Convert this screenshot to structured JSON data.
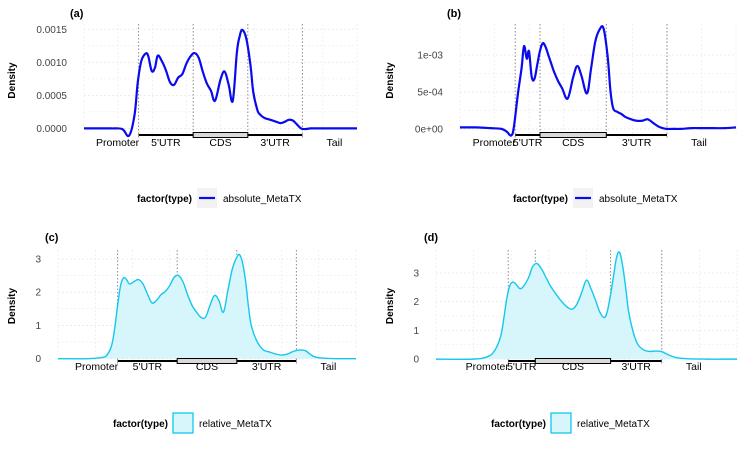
{
  "colors": {
    "absolute_line": "#0a0aee",
    "relative_line": "#13c8ec",
    "relative_fill": "#d6f6fb",
    "grid": "#e8e8e8",
    "region_line": "#8a8a8a",
    "axis_text": "#444444",
    "text": "#000000"
  },
  "chart_data": [
    {
      "panel": "(a)",
      "type": "line",
      "ylabel": "Density",
      "ylim": [
        -0.00013,
        0.00158
      ],
      "yticks": [
        0,
        0.0005,
        0.001,
        0.0015
      ],
      "ytick_labels": [
        "0.0000",
        "0.0005",
        "0.0010",
        "0.0015"
      ],
      "xlim": [
        0,
        100
      ],
      "boundaries": [
        20,
        40,
        60,
        80
      ],
      "regions": [
        "Promoter",
        "5'UTR",
        "CDS",
        "3'UTR",
        "Tail"
      ],
      "grid": true,
      "legend": {
        "title": "factor(type)",
        "label": "absolute_MetaTX",
        "placement": "bottom",
        "style": "line"
      },
      "series": [
        {
          "name": "absolute_MetaTX",
          "x": [
            0,
            6,
            10,
            14,
            16.5,
            18.5,
            19.7,
            21,
            22.5,
            23.5,
            24.8,
            26,
            27,
            28.5,
            30,
            31.5,
            33,
            34.5,
            36,
            37.5,
            39,
            40.5,
            42,
            43.5,
            45,
            46.5,
            48,
            50,
            51.5,
            53,
            54.5,
            56,
            57,
            58,
            59.5,
            61,
            62,
            63.5,
            64.5,
            66,
            67.5,
            69,
            70.5,
            72,
            73.5,
            75,
            76.5,
            78,
            79.5,
            81,
            83,
            85,
            88,
            92,
            96,
            100
          ],
          "y": [
            0,
            0,
            0,
            -1e-05,
            -0.00011,
            0.0002,
            0.0007,
            0.00102,
            0.00113,
            0.0011,
            0.00087,
            0.00092,
            0.0011,
            0.00102,
            0.00088,
            0.0007,
            0.00066,
            0.00077,
            0.00082,
            0.00098,
            0.00109,
            0.00114,
            0.00107,
            0.00086,
            0.00068,
            0.00057,
            0.00042,
            0.00074,
            0.00086,
            0.00066,
            0.00042,
            0.00115,
            0.00139,
            0.00149,
            0.00135,
            0.00095,
            0.00055,
            0.00028,
            0.00021,
            0.00016,
            0.00014,
            0.00012,
            0.0001,
            8e-05,
            0.0001,
            0.00013,
            0.00012,
            6e-05,
            0,
            -1e-05,
            0,
            0,
            0,
            0,
            0,
            0
          ]
        }
      ]
    },
    {
      "panel": "(b)",
      "type": "line",
      "ylabel": "Density",
      "ylim": [
        -0.00011,
        0.00142
      ],
      "yticks": [
        0,
        0.0005,
        0.001
      ],
      "ytick_labels": [
        "0e+00",
        "5e-04",
        "1e-03"
      ],
      "xlim": [
        0,
        100
      ],
      "boundaries": [
        20,
        29,
        53,
        75
      ],
      "regions": [
        "Promoter",
        "5'UTR",
        "CDS",
        "3'UTR",
        "Tail"
      ],
      "grid": true,
      "legend": {
        "title": "factor(type)",
        "label": "absolute_MetaTX",
        "placement": "bottom",
        "style": "line"
      },
      "series": [
        {
          "name": "absolute_MetaTX",
          "x": [
            0,
            6,
            11,
            15,
            17,
            18.5,
            19.5,
            21,
            22.3,
            23.2,
            24.2,
            25,
            26,
            27,
            28,
            29,
            30,
            31,
            32,
            33,
            34,
            35.5,
            37,
            39,
            41,
            42.5,
            44,
            46,
            47.5,
            49,
            50.5,
            52,
            53.5,
            54.5,
            55.5,
            57,
            58.5,
            60,
            62,
            64,
            66,
            68,
            70,
            72,
            73.5,
            75,
            77,
            80,
            84,
            88,
            92,
            96,
            100
          ],
          "y": [
            2e-05,
            2e-05,
            1e-05,
            0,
            -4e-05,
            -9e-05,
            2e-05,
            0.00048,
            0.00082,
            0.00112,
            0.00095,
            0.00105,
            0.0007,
            0.00068,
            0.00087,
            0.00106,
            0.00116,
            0.00111,
            0.001,
            0.00089,
            0.00078,
            0.00065,
            0.00055,
            0.00041,
            0.0007,
            0.00085,
            0.00072,
            0.00048,
            0.00082,
            0.00118,
            0.00134,
            0.00136,
            0.00098,
            0.00052,
            0.00028,
            0.00023,
            0.0002,
            0.00016,
            0.00013,
            0.00011,
            0.00011,
            0.00013,
            8e-05,
            3e-05,
            1e-05,
            0,
            0,
            0,
            1e-05,
            1e-05,
            1e-05,
            1e-05,
            2e-05
          ]
        }
      ]
    },
    {
      "panel": "(c)",
      "type": "area",
      "ylabel": "Density",
      "ylim": [
        -0.1,
        3.27
      ],
      "yticks": [
        0,
        1,
        2,
        3
      ],
      "ytick_labels": [
        "0",
        "1",
        "2",
        "3"
      ],
      "xlim": [
        0,
        100
      ],
      "boundaries": [
        20,
        40,
        60,
        80
      ],
      "regions": [
        "Promoter",
        "5'UTR",
        "CDS",
        "3'UTR",
        "Tail"
      ],
      "grid": true,
      "legend": {
        "title": "factor(type)",
        "label": "relative_MetaTX",
        "placement": "bottom",
        "style": "fill"
      },
      "series": [
        {
          "name": "relative_MetaTX",
          "x": [
            0,
            10,
            15,
            16.5,
            18,
            19,
            20,
            21,
            22,
            23,
            24,
            25.5,
            27,
            28.5,
            30,
            31.5,
            33,
            34.5,
            36,
            37.5,
            39,
            40.5,
            42,
            43.5,
            45,
            46.5,
            48,
            49.5,
            51,
            52.5,
            54,
            55.5,
            57,
            58.5,
            60,
            61,
            62,
            63,
            64,
            65,
            67,
            69,
            71,
            73,
            75,
            77,
            79,
            81,
            83,
            86,
            90,
            95,
            100
          ],
          "y": [
            0,
            0,
            0.04,
            0.12,
            0.4,
            0.9,
            1.6,
            2.2,
            2.43,
            2.38,
            2.25,
            2.32,
            2.38,
            2.25,
            1.95,
            1.68,
            1.75,
            1.92,
            2.02,
            2.2,
            2.45,
            2.5,
            2.3,
            1.92,
            1.6,
            1.4,
            1.24,
            1.25,
            1.6,
            1.9,
            1.75,
            1.4,
            2.05,
            2.7,
            3.05,
            3.12,
            2.85,
            2.3,
            1.5,
            0.95,
            0.48,
            0.26,
            0.2,
            0.14,
            0.11,
            0.14,
            0.22,
            0.26,
            0.24,
            0.06,
            0.01,
            0,
            0
          ]
        }
      ]
    },
    {
      "panel": "(d)",
      "type": "area",
      "ylabel": "Density",
      "ylim": [
        -0.1,
        3.8
      ],
      "yticks": [
        0,
        1,
        2,
        3
      ],
      "ytick_labels": [
        "0",
        "1",
        "2",
        "3"
      ],
      "xlim": [
        0,
        100
      ],
      "boundaries": [
        24,
        33,
        58,
        75
      ],
      "regions": [
        "Promoter",
        "5'UTR",
        "CDS",
        "3'UTR",
        "Tail"
      ],
      "grid": true,
      "legend": {
        "title": "factor(type)",
        "label": "relative_MetaTX",
        "placement": "bottom",
        "style": "fill"
      },
      "series": [
        {
          "name": "relative_MetaTX",
          "x": [
            0,
            12,
            17,
            19.5,
            21.5,
            22.5,
            23.5,
            24.5,
            25.5,
            26.5,
            28,
            29.5,
            31,
            32,
            33.5,
            35,
            36.5,
            38,
            39.5,
            41,
            42.5,
            44,
            45.5,
            47,
            48.5,
            50,
            51.5,
            53,
            54.5,
            56,
            57,
            58,
            59,
            60,
            61,
            62,
            63,
            64,
            65.5,
            67,
            69,
            71,
            73,
            75,
            77,
            80,
            84,
            90,
            95,
            100
          ],
          "y": [
            0,
            0,
            0.08,
            0.3,
            0.8,
            1.4,
            2.1,
            2.55,
            2.68,
            2.62,
            2.45,
            2.6,
            2.9,
            3.2,
            3.33,
            3.15,
            2.85,
            2.55,
            2.32,
            2.1,
            1.92,
            1.78,
            1.75,
            1.95,
            2.35,
            2.75,
            2.45,
            2.05,
            1.62,
            1.45,
            1.7,
            2.25,
            2.9,
            3.55,
            3.72,
            3.25,
            2.5,
            1.65,
            0.95,
            0.52,
            0.32,
            0.27,
            0.28,
            0.26,
            0.16,
            0.05,
            0.01,
            0,
            0,
            0
          ]
        }
      ]
    }
  ]
}
